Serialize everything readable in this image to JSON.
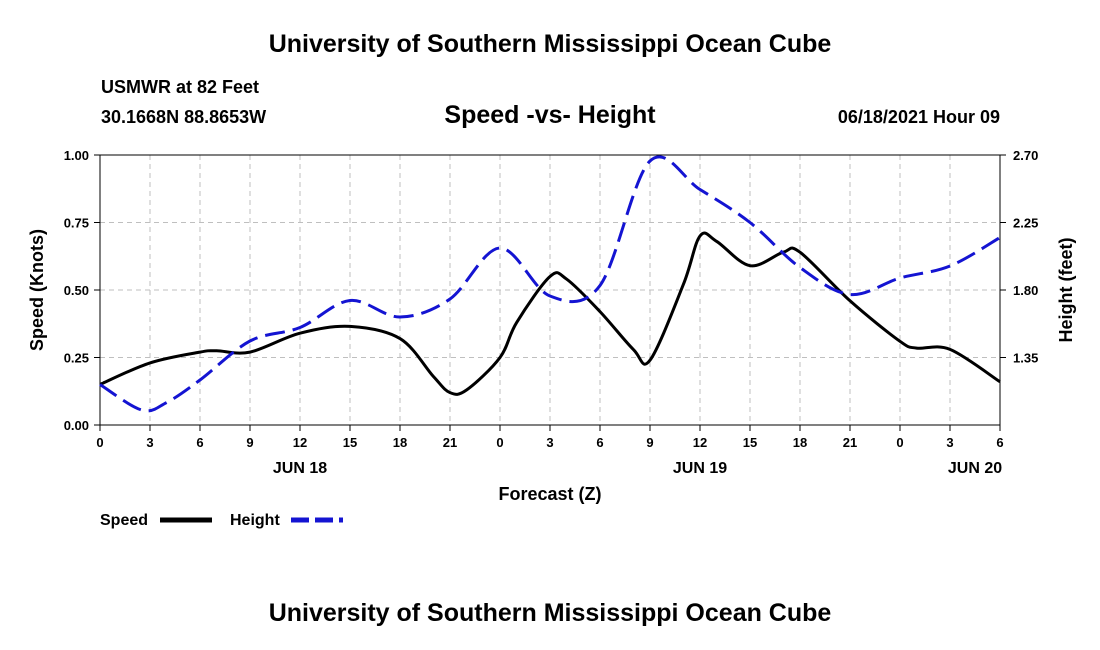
{
  "header": {
    "title": "University of Southern Mississippi Ocean Cube",
    "station": "USMWR at 82 Feet",
    "coords": "30.1668N  88.8653W",
    "subtitle": "Speed -vs- Height",
    "datetime": "06/18/2021 Hour 09"
  },
  "footer": {
    "title": "University of Southern Mississippi Ocean Cube"
  },
  "colors": {
    "speed": "#000000",
    "height": "#1414d2",
    "grid": "#bfbfbf"
  },
  "chart_data": {
    "type": "line",
    "title": "Speed -vs- Height",
    "xlabel": "Forecast (Z)",
    "ylabel_left": "Speed (Knots)",
    "ylabel_right": "Height (feet)",
    "x_ticks": [
      "0",
      "3",
      "6",
      "9",
      "12",
      "15",
      "18",
      "21",
      "0",
      "3",
      "6",
      "9",
      "12",
      "15",
      "18",
      "21",
      "0",
      "3",
      "6"
    ],
    "x_hours": [
      0,
      3,
      6,
      9,
      12,
      15,
      18,
      21,
      24,
      27,
      30,
      33,
      36,
      39,
      42,
      45,
      48,
      51,
      54
    ],
    "xlim": [
      0,
      54
    ],
    "day_labels": [
      {
        "label": "JUN 18",
        "hour": 12
      },
      {
        "label": "JUN 19",
        "hour": 36
      },
      {
        "label": "JUN 20",
        "hour": 52.5
      }
    ],
    "ylim_left": [
      0,
      1
    ],
    "yticks_left": [
      "0.00",
      "0.25",
      "0.50",
      "0.75",
      "1.00"
    ],
    "yticks_left_values": [
      0,
      0.25,
      0.5,
      0.75,
      1.0
    ],
    "ylim_right": [
      0.9,
      2.7
    ],
    "yticks_right": [
      "1.35",
      "1.80",
      "2.25",
      "2.70"
    ],
    "yticks_right_values": [
      1.35,
      1.8,
      2.25,
      2.7
    ],
    "grid": true,
    "legend": [
      {
        "label": "Speed",
        "style": "solid"
      },
      {
        "label": "Height",
        "style": "dashed"
      }
    ],
    "series": [
      {
        "name": "Speed",
        "axis": "left",
        "x": [
          0,
          3,
          6,
          7,
          9,
          12,
          15,
          18,
          20,
          21,
          22,
          24,
          25,
          27,
          28,
          30,
          32,
          33,
          35,
          36,
          37,
          39,
          41,
          42,
          45,
          48,
          49,
          51,
          54
        ],
        "y": [
          0.15,
          0.23,
          0.27,
          0.275,
          0.27,
          0.34,
          0.365,
          0.32,
          0.18,
          0.12,
          0.13,
          0.25,
          0.38,
          0.55,
          0.54,
          0.42,
          0.28,
          0.24,
          0.52,
          0.7,
          0.68,
          0.59,
          0.64,
          0.64,
          0.46,
          0.31,
          0.285,
          0.28,
          0.16
        ]
      },
      {
        "name": "Height",
        "axis": "right",
        "x": [
          0,
          2.5,
          4,
          6,
          9,
          12,
          15,
          18,
          21,
          24,
          27,
          30,
          33,
          36,
          39,
          42,
          45,
          48,
          51,
          54
        ],
        "y": [
          1.17,
          1.0,
          1.05,
          1.2,
          1.46,
          1.55,
          1.73,
          1.62,
          1.74,
          2.08,
          1.76,
          1.83,
          2.66,
          2.47,
          2.25,
          1.95,
          1.77,
          1.88,
          1.96,
          2.15
        ]
      }
    ]
  }
}
